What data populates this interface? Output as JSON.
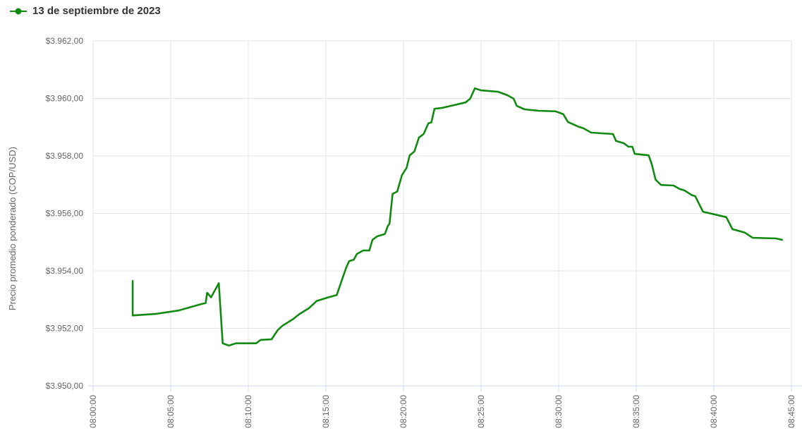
{
  "legend": {
    "label": "13 de septiembre de 2023"
  },
  "chart_data": {
    "type": "line",
    "title": "",
    "xlabel": "",
    "ylabel": "Precio promedio ponderado (COP/USD)",
    "x_unit": "minutes after 08:00:00",
    "x_range": [
      0,
      45
    ],
    "y_range": [
      3950,
      3962
    ],
    "grid": true,
    "legend_position": "top-left",
    "x_ticks": [
      {
        "t": 0,
        "label": "08:00:00"
      },
      {
        "t": 5,
        "label": "08:05:00"
      },
      {
        "t": 10,
        "label": "08:10:00"
      },
      {
        "t": 15,
        "label": "08:15:00"
      },
      {
        "t": 20,
        "label": "08:20:00"
      },
      {
        "t": 25,
        "label": "08:25:00"
      },
      {
        "t": 30,
        "label": "08:30:00"
      },
      {
        "t": 35,
        "label": "08:35:00"
      },
      {
        "t": 40,
        "label": "08:40:00"
      },
      {
        "t": 45,
        "label": "08:45:00"
      }
    ],
    "y_ticks": [
      {
        "v": 3950,
        "label": "$3.950,00"
      },
      {
        "v": 3952,
        "label": "$3.952,00"
      },
      {
        "v": 3954,
        "label": "$3.954,00"
      },
      {
        "v": 3956,
        "label": "$3.956,00"
      },
      {
        "v": 3958,
        "label": "$3.958,00"
      },
      {
        "v": 3960,
        "label": "$3.960,00"
      },
      {
        "v": 3962,
        "label": "$3.962,00"
      }
    ],
    "colors": {
      "series": "#128a12",
      "grid": "#e6e6e6",
      "axis": "#ccd6eb",
      "tick_label": "#666666",
      "legend_text": "#333333",
      "background": "#ffffff"
    },
    "series": [
      {
        "name": "13 de septiembre de 2023",
        "color": "#128a12",
        "points": [
          [
            2.55,
            3953.65
          ],
          [
            2.55,
            3952.45
          ],
          [
            4,
            3952.5
          ],
          [
            5.5,
            3952.62
          ],
          [
            7,
            3952.85
          ],
          [
            7.25,
            3952.88
          ],
          [
            7.35,
            3953.24
          ],
          [
            7.6,
            3953.08
          ],
          [
            8.1,
            3953.57
          ],
          [
            8.35,
            3951.48
          ],
          [
            8.75,
            3951.4
          ],
          [
            9.2,
            3951.48
          ],
          [
            10.5,
            3951.48
          ],
          [
            10.8,
            3951.6
          ],
          [
            11.5,
            3951.62
          ],
          [
            11.9,
            3951.94
          ],
          [
            12.2,
            3952.09
          ],
          [
            12.9,
            3952.33
          ],
          [
            13.3,
            3952.5
          ],
          [
            13.9,
            3952.7
          ],
          [
            14.4,
            3952.95
          ],
          [
            15.1,
            3953.07
          ],
          [
            15.7,
            3953.16
          ],
          [
            16.3,
            3954.1
          ],
          [
            16.5,
            3954.34
          ],
          [
            16.8,
            3954.39
          ],
          [
            17,
            3954.59
          ],
          [
            17.4,
            3954.71
          ],
          [
            17.8,
            3954.71
          ],
          [
            18,
            3955.08
          ],
          [
            18.3,
            3955.2
          ],
          [
            18.8,
            3955.28
          ],
          [
            19,
            3955.57
          ],
          [
            19.1,
            3955.64
          ],
          [
            19.3,
            3956.68
          ],
          [
            19.6,
            3956.76
          ],
          [
            19.9,
            3957.33
          ],
          [
            20.2,
            3957.58
          ],
          [
            20.4,
            3958.02
          ],
          [
            20.7,
            3958.15
          ],
          [
            21,
            3958.64
          ],
          [
            21.3,
            3958.76
          ],
          [
            21.6,
            3959.13
          ],
          [
            21.8,
            3959.17
          ],
          [
            22,
            3959.64
          ],
          [
            22.5,
            3959.67
          ],
          [
            24,
            3959.86
          ],
          [
            24.3,
            3959.99
          ],
          [
            24.6,
            3960.35
          ],
          [
            25,
            3960.28
          ],
          [
            26.1,
            3960.23
          ],
          [
            26.7,
            3960.11
          ],
          [
            27.1,
            3959.99
          ],
          [
            27.3,
            3959.74
          ],
          [
            27.8,
            3959.62
          ],
          [
            28.7,
            3959.57
          ],
          [
            29.8,
            3959.55
          ],
          [
            30.3,
            3959.45
          ],
          [
            30.6,
            3959.18
          ],
          [
            31.3,
            3959.01
          ],
          [
            31.6,
            3958.96
          ],
          [
            32.1,
            3958.81
          ],
          [
            33.5,
            3958.76
          ],
          [
            33.7,
            3958.52
          ],
          [
            34.2,
            3958.44
          ],
          [
            34.5,
            3958.32
          ],
          [
            34.75,
            3958.32
          ],
          [
            34.9,
            3958.07
          ],
          [
            35.8,
            3958.02
          ],
          [
            36,
            3957.71
          ],
          [
            36.25,
            3957.17
          ],
          [
            36.6,
            3956.99
          ],
          [
            37.4,
            3956.97
          ],
          [
            37.8,
            3956.85
          ],
          [
            38.1,
            3956.8
          ],
          [
            38.6,
            3956.63
          ],
          [
            38.8,
            3956.6
          ],
          [
            39.3,
            3956.06
          ],
          [
            40.8,
            3955.87
          ],
          [
            41.2,
            3955.45
          ],
          [
            42,
            3955.33
          ],
          [
            42.5,
            3955.15
          ],
          [
            44,
            3955.13
          ],
          [
            44.4,
            3955.08
          ]
        ]
      }
    ]
  }
}
